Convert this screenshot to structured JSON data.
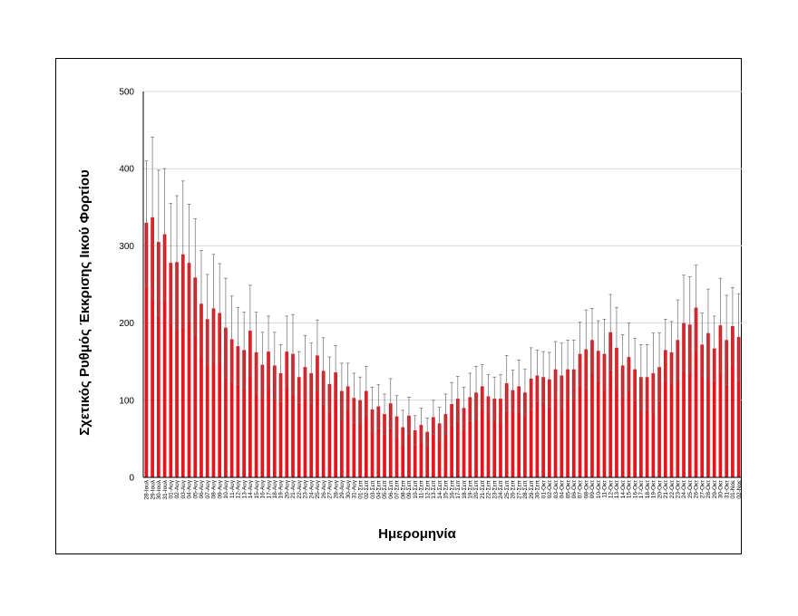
{
  "chart_data": {
    "type": "bar",
    "title": "",
    "ylabel": "Σχετικός Ρυθμός Έκκρισης Ιικού Φορτίου",
    "xlabel": "Ημερομηνία",
    "ylim": [
      0,
      500
    ],
    "yticks": [
      0,
      100,
      200,
      300,
      400,
      500
    ],
    "grid": true,
    "bar_color": "#e8141b",
    "categories": [
      "28-Ιουλ",
      "29-Ιουλ",
      "30-Ιουλ",
      "31-Ιουλ",
      "01-Αυγ",
      "02-Αυγ",
      "03-Αυγ",
      "04-Αυγ",
      "05-Αυγ",
      "06-Αυγ",
      "07-Αυγ",
      "08-Αυγ",
      "09-Αυγ",
      "10-Αυγ",
      "11-Αυγ",
      "12-Αυγ",
      "13-Αυγ",
      "14-Αυγ",
      "15-Αυγ",
      "16-Αυγ",
      "17-Αυγ",
      "18-Αυγ",
      "19-Αυγ",
      "20-Αυγ",
      "21-Αυγ",
      "22-Αυγ",
      "23-Αυγ",
      "24-Αυγ",
      "25-Αυγ",
      "26-Αυγ",
      "27-Αυγ",
      "28-Αυγ",
      "29-Αυγ",
      "30-Αυγ",
      "31-Αυγ",
      "01-Σεπ",
      "02-Σεπ",
      "03-Σεπ",
      "04-Σεπ",
      "05-Σεπ",
      "06-Σεπ",
      "07-Σεπ",
      "08-Σεπ",
      "09-Σεπ",
      "10-Σεπ",
      "11-Σεπ",
      "12-Σεπ",
      "13-Σεπ",
      "14-Σεπ",
      "15-Σεπ",
      "16-Σεπ",
      "17-Σεπ",
      "18-Σεπ",
      "19-Σεπ",
      "20-Σεπ",
      "21-Σεπ",
      "22-Σεπ",
      "23-Σεπ",
      "24-Σεπ",
      "25-Σεπ",
      "26-Σεπ",
      "27-Σεπ",
      "28-Σεπ",
      "29-Σεπ",
      "30-Σεπ",
      "01-Οκτ",
      "02-Οκτ",
      "03-Οκτ",
      "04-Οκτ",
      "05-Οκτ",
      "06-Οκτ",
      "07-Οκτ",
      "08-Οκτ",
      "09-Οκτ",
      "10-Οκτ",
      "11-Οκτ",
      "12-Οκτ",
      "13-Οκτ",
      "14-Οκτ",
      "15-Οκτ",
      "16-Οκτ",
      "17-Οκτ",
      "18-Οκτ",
      "19-Οκτ",
      "20-Οκτ",
      "21-Οκτ",
      "22-Οκτ",
      "23-Οκτ",
      "24-Οκτ",
      "25-Οκτ",
      "26-Οκτ",
      "27-Οκτ",
      "28-Οκτ",
      "29-Οκτ",
      "30-Οκτ",
      "31-Οκτ",
      "01-Νοε",
      "02-Νοε"
    ],
    "values": [
      330,
      337,
      305,
      315,
      278,
      279,
      289,
      278,
      259,
      225,
      205,
      219,
      213,
      194,
      179,
      170,
      165,
      190,
      162,
      146,
      163,
      145,
      135,
      163,
      160,
      130,
      143,
      135,
      158,
      138,
      121,
      136,
      112,
      118,
      103,
      100,
      112,
      88,
      92,
      82,
      96,
      79,
      65,
      80,
      61,
      68,
      59,
      78,
      70,
      82,
      95,
      102,
      90,
      104,
      110,
      118,
      105,
      102,
      102,
      122,
      113,
      118,
      110,
      128,
      132,
      130,
      127,
      140,
      132,
      140,
      140,
      160,
      166,
      178,
      164,
      160,
      188,
      168,
      145,
      156,
      140,
      130,
      130,
      135,
      143,
      165,
      162,
      178,
      200,
      198,
      220,
      172,
      187,
      167,
      197,
      178,
      196,
      182
    ],
    "error_upper": [
      410,
      441,
      398,
      400,
      355,
      365,
      384,
      354,
      335,
      294,
      263,
      289,
      277,
      258,
      235,
      220,
      214,
      249,
      214,
      188,
      209,
      188,
      172,
      209,
      211,
      163,
      184,
      174,
      204,
      181,
      156,
      171,
      148,
      148,
      135,
      130,
      144,
      117,
      120,
      108,
      128,
      106,
      87,
      104,
      80,
      90,
      77,
      100,
      91,
      108,
      123,
      131,
      117,
      135,
      144,
      146,
      133,
      130,
      133,
      158,
      139,
      152,
      140,
      168,
      165,
      163,
      162,
      176,
      174,
      178,
      178,
      201,
      217,
      219,
      203,
      205,
      237,
      220,
      185,
      200,
      180,
      172,
      172,
      187,
      187,
      205,
      202,
      230,
      262,
      260,
      275,
      213,
      244,
      209,
      258,
      236,
      246,
      238
    ],
    "error_lower": [
      248,
      232,
      210,
      230,
      200,
      193,
      195,
      202,
      185,
      158,
      147,
      149,
      149,
      130,
      123,
      120,
      116,
      131,
      110,
      104,
      117,
      102,
      98,
      117,
      109,
      97,
      102,
      96,
      112,
      95,
      86,
      101,
      76,
      88,
      71,
      70,
      80,
      59,
      64,
      56,
      64,
      52,
      43,
      56,
      42,
      46,
      41,
      56,
      49,
      56,
      67,
      73,
      63,
      73,
      76,
      90,
      77,
      74,
      71,
      86,
      87,
      84,
      80,
      88,
      99,
      97,
      92,
      104,
      90,
      102,
      102,
      119,
      115,
      137,
      125,
      115,
      139,
      116,
      105,
      112,
      100,
      88,
      88,
      83,
      99,
      125,
      122,
      126,
      138,
      136,
      165,
      131,
      130,
      125,
      136,
      120,
      146,
      126
    ]
  }
}
